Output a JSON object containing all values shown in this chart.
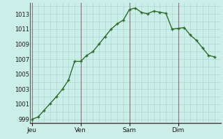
{
  "background_color": "#cceee8",
  "grid_color": "#aad8d0",
  "line_color": "#2d6a2d",
  "marker_color": "#2d6a2d",
  "x_tick_labels": [
    "Jeu",
    "Ven",
    "Sam",
    "Dim"
  ],
  "x_tick_positions": [
    0,
    8,
    16,
    24
  ],
  "ylim": [
    998.5,
    1014.5
  ],
  "yticks": [
    999,
    1001,
    1003,
    1005,
    1007,
    1009,
    1011,
    1013
  ],
  "xlim": [
    -0.3,
    31.0
  ],
  "data_x": [
    0,
    1,
    2,
    3,
    4,
    5,
    6,
    7,
    8,
    9,
    10,
    11,
    12,
    13,
    14,
    15,
    16,
    17,
    18,
    19,
    20,
    21,
    22,
    23,
    24,
    25,
    26,
    27,
    28,
    29,
    30
  ],
  "data_y": [
    999.0,
    999.3,
    1000.2,
    1001.1,
    1002.0,
    1003.0,
    1004.2,
    1006.7,
    1006.7,
    1007.5,
    1008.0,
    1009.0,
    1010.0,
    1011.0,
    1011.7,
    1012.2,
    1013.6,
    1013.8,
    1013.2,
    1013.05,
    1013.4,
    1013.25,
    1013.1,
    1011.0,
    1011.1,
    1011.2,
    1010.2,
    1009.5,
    1008.5,
    1007.5,
    1007.3
  ]
}
